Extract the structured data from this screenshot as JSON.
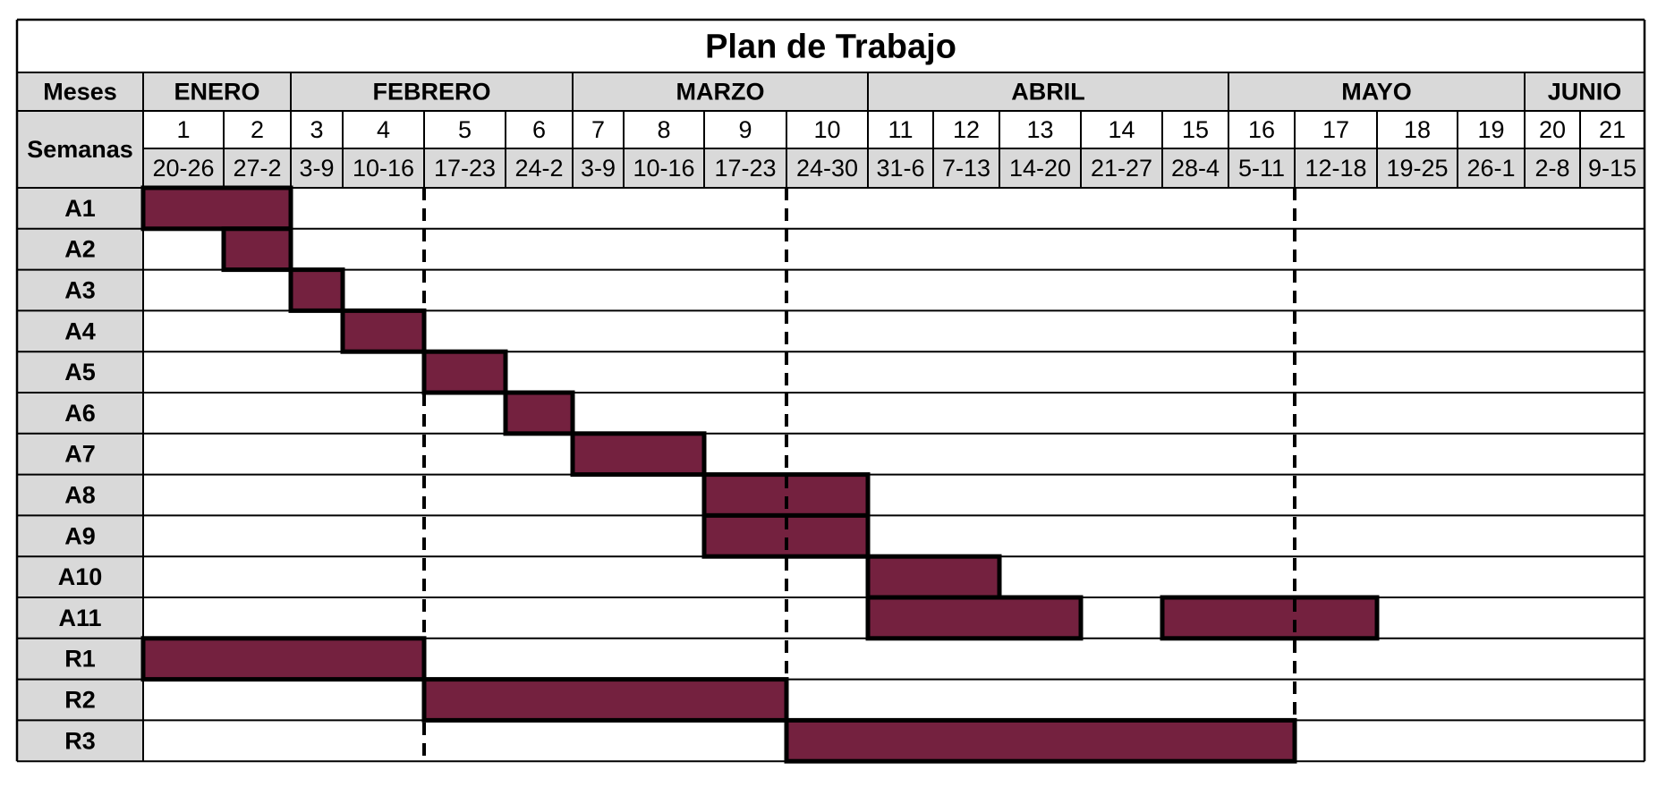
{
  "chart_data": {
    "type": "gantt",
    "title": "Plan de Trabajo",
    "row_header_months": "Meses",
    "row_header_weeks": "Semanas",
    "months": [
      {
        "label": "ENERO",
        "start_week": 1,
        "end_week": 2
      },
      {
        "label": "FEBRERO",
        "start_week": 3,
        "end_week": 6
      },
      {
        "label": "MARZO",
        "start_week": 7,
        "end_week": 10
      },
      {
        "label": "ABRIL",
        "start_week": 11,
        "end_week": 15
      },
      {
        "label": "MAYO",
        "start_week": 16,
        "end_week": 19
      },
      {
        "label": "JUNIO",
        "start_week": 20,
        "end_week": 21
      }
    ],
    "weeks": [
      {
        "num": "1",
        "range": "20-26"
      },
      {
        "num": "2",
        "range": "27-2"
      },
      {
        "num": "3",
        "range": "3-9"
      },
      {
        "num": "4",
        "range": "10-16"
      },
      {
        "num": "5",
        "range": "17-23"
      },
      {
        "num": "6",
        "range": "24-2"
      },
      {
        "num": "7",
        "range": "3-9"
      },
      {
        "num": "8",
        "range": "10-16"
      },
      {
        "num": "9",
        "range": "17-23"
      },
      {
        "num": "10",
        "range": "24-30"
      },
      {
        "num": "11",
        "range": "31-6"
      },
      {
        "num": "12",
        "range": "7-13"
      },
      {
        "num": "13",
        "range": "14-20"
      },
      {
        "num": "14",
        "range": "21-27"
      },
      {
        "num": "15",
        "range": "28-4"
      },
      {
        "num": "16",
        "range": "5-11"
      },
      {
        "num": "17",
        "range": "12-18"
      },
      {
        "num": "18",
        "range": "19-25"
      },
      {
        "num": "19",
        "range": "26-1"
      },
      {
        "num": "20",
        "range": "2-8"
      },
      {
        "num": "21",
        "range": "9-15"
      }
    ],
    "tasks": [
      {
        "label": "A1",
        "bars": [
          [
            1,
            2
          ]
        ]
      },
      {
        "label": "A2",
        "bars": [
          [
            2,
            2
          ]
        ]
      },
      {
        "label": "A3",
        "bars": [
          [
            3,
            3
          ]
        ]
      },
      {
        "label": "A4",
        "bars": [
          [
            4,
            4
          ]
        ]
      },
      {
        "label": "A5",
        "bars": [
          [
            5,
            5
          ]
        ]
      },
      {
        "label": "A6",
        "bars": [
          [
            6,
            6
          ]
        ]
      },
      {
        "label": "A7",
        "bars": [
          [
            7,
            8
          ]
        ]
      },
      {
        "label": "A8",
        "bars": [
          [
            9,
            10
          ]
        ]
      },
      {
        "label": "A9",
        "bars": [
          [
            9,
            10
          ]
        ]
      },
      {
        "label": "A10",
        "bars": [
          [
            11,
            12
          ]
        ]
      },
      {
        "label": "A11",
        "bars": [
          [
            11,
            13
          ],
          [
            15,
            17
          ]
        ]
      },
      {
        "label": "R1",
        "bars": [
          [
            1,
            4
          ]
        ]
      },
      {
        "label": "R2",
        "bars": [
          [
            5,
            9
          ]
        ]
      },
      {
        "label": "R3",
        "bars": [
          [
            10,
            16
          ]
        ]
      }
    ],
    "milestone_lines_after_week": [
      4,
      9,
      16
    ],
    "bar_color": "#74213f",
    "header_fill": "#d9d9d9",
    "grid": true
  }
}
